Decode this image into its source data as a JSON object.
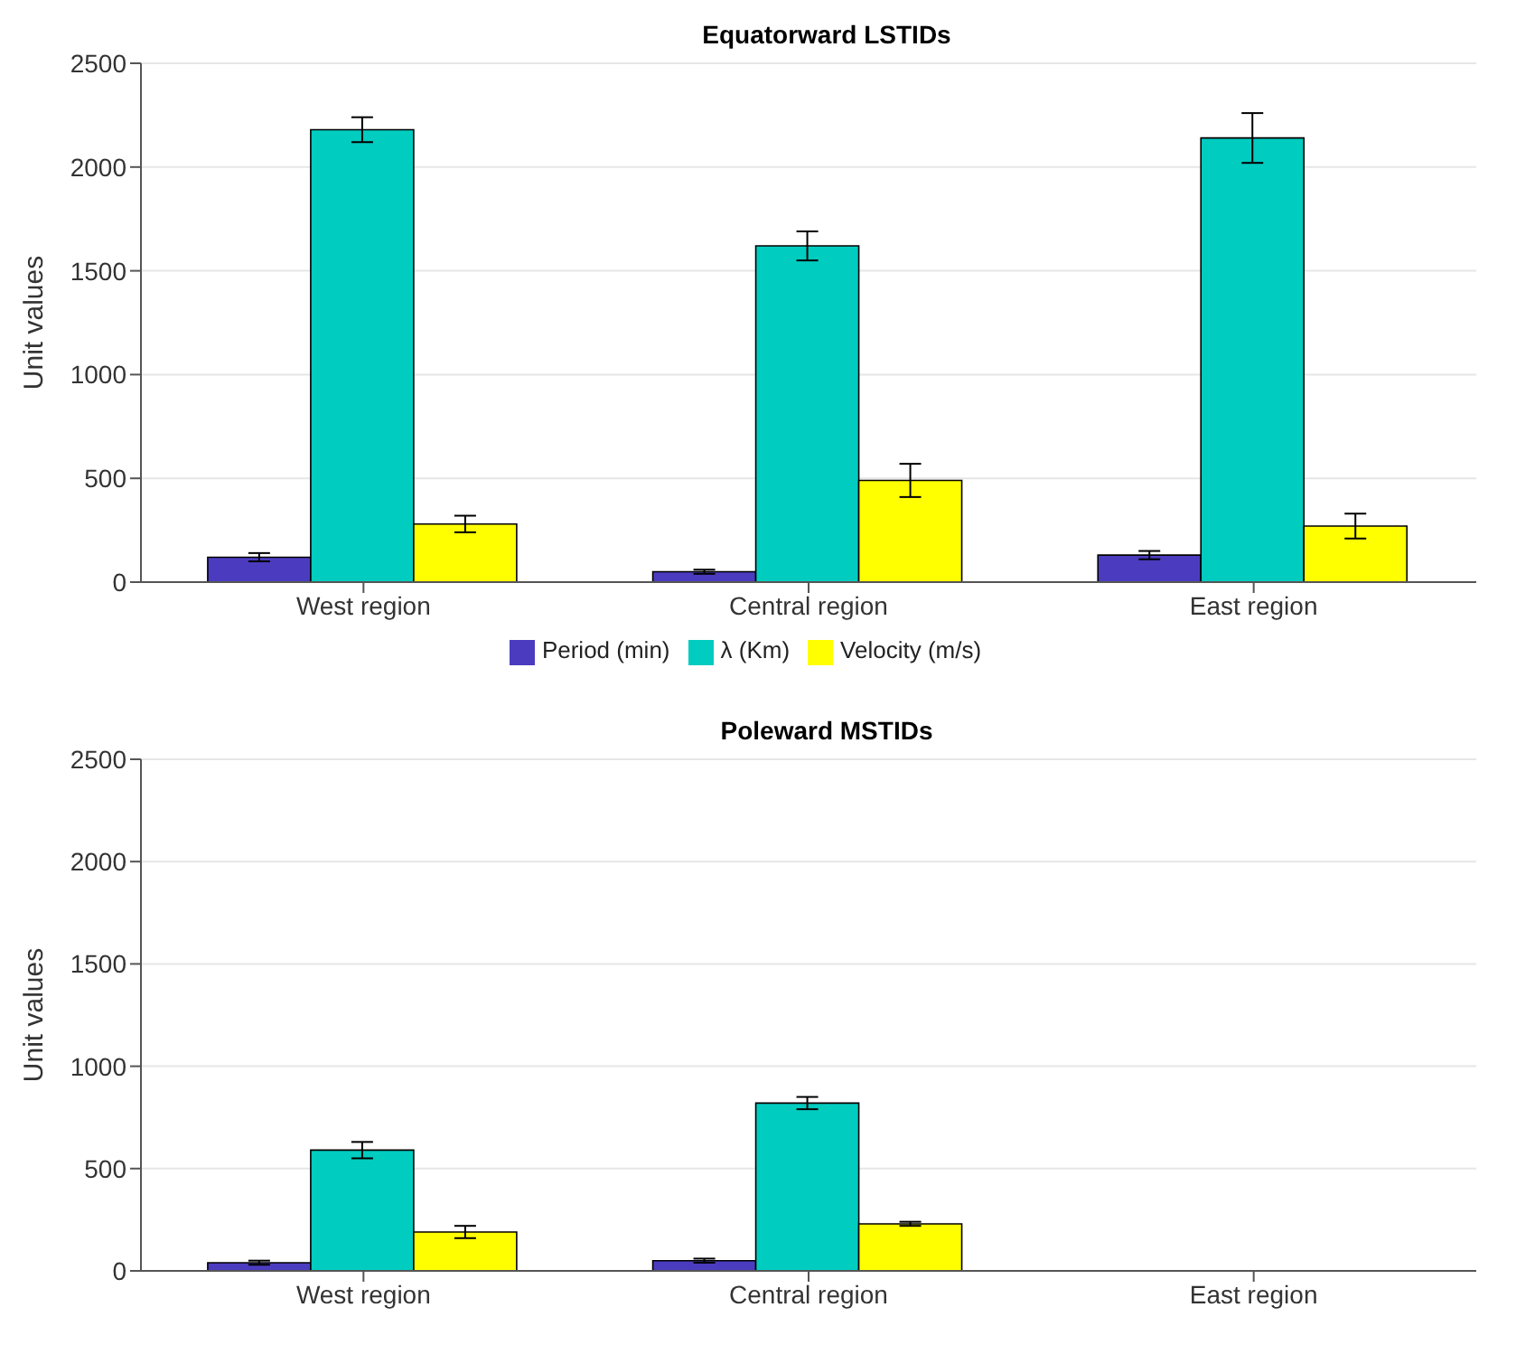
{
  "chart_data": [
    {
      "type": "bar",
      "title": "Equatorward LSTIDs",
      "ylabel": "Unit values",
      "categories": [
        "West region",
        "Central region",
        "East region"
      ],
      "ylim": [
        0,
        2500
      ],
      "yticks": [
        0,
        500,
        1000,
        1500,
        2000,
        2500
      ],
      "grid": "y",
      "legend": "bottom",
      "series": [
        {
          "name": "Period (min)",
          "color": "#4b3cbf",
          "values": [
            120,
            50,
            130
          ],
          "errors": [
            20,
            10,
            20
          ]
        },
        {
          "name": "λ (Km)",
          "color": "#00ccc0",
          "values": [
            2180,
            1620,
            2140
          ],
          "errors": [
            60,
            70,
            120
          ]
        },
        {
          "name": "Velocity (m/s)",
          "color": "#ffff00",
          "values": [
            280,
            490,
            270
          ],
          "errors": [
            40,
            80,
            60
          ]
        }
      ]
    },
    {
      "type": "bar",
      "title": "Poleward MSTIDs",
      "ylabel": "Unit values",
      "categories": [
        "West region",
        "Central region",
        "East region"
      ],
      "ylim": [
        0,
        2500
      ],
      "yticks": [
        0,
        500,
        1000,
        1500,
        2000,
        2500
      ],
      "grid": "y",
      "legend": false,
      "series": [
        {
          "color": "#4b3cbf",
          "values": [
            40,
            50,
            null
          ],
          "errors": [
            10,
            10,
            null
          ]
        },
        {
          "color": "#00ccc0",
          "values": [
            590,
            820,
            null
          ],
          "errors": [
            40,
            30,
            null
          ]
        },
        {
          "color": "#ffff00",
          "values": [
            190,
            230,
            null
          ],
          "errors": [
            30,
            10,
            null
          ]
        }
      ]
    }
  ]
}
